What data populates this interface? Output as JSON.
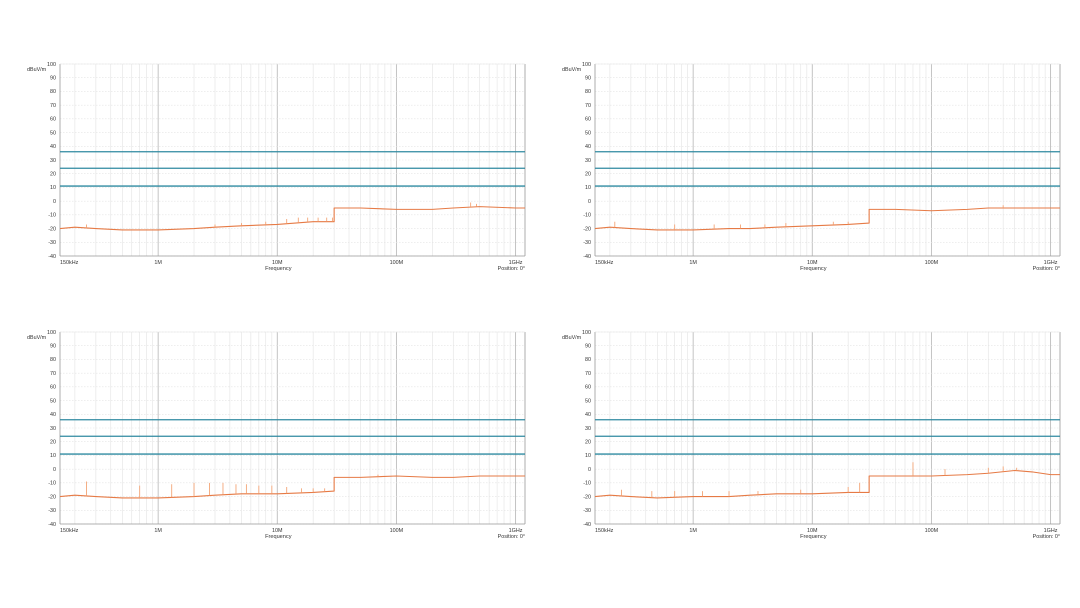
{
  "colors": {
    "grid_major": "#bdbdbd",
    "grid_minor": "#e3e3e3",
    "axis": "#999999",
    "limit_line": "#2f8aa0",
    "trace": "#e67a45",
    "trace_peaks": "#f29a66"
  },
  "chart_data": [
    {
      "type": "line",
      "ylabel": "dBuV/m",
      "xlabel": "Frequency",
      "position_label": "Position: 0°",
      "x_scale": "log",
      "xlim": [
        150000,
        1200000000
      ],
      "ylim": [
        -40,
        100
      ],
      "yticks": [
        100,
        90,
        80,
        70,
        60,
        50,
        40,
        30,
        20,
        10,
        0,
        -10,
        -20,
        -30,
        -40
      ],
      "xticks": [
        {
          "value": 150000,
          "label": "150kHz"
        },
        {
          "value": 1000000,
          "label": "1M"
        },
        {
          "value": 10000000,
          "label": "10M"
        },
        {
          "value": 100000000,
          "label": "100M"
        },
        {
          "value": 1000000000,
          "label": "1GHz"
        }
      ],
      "grid": true,
      "limit_lines": [
        36,
        24,
        11
      ],
      "series": [
        {
          "x": [
            150000,
            200000,
            300000,
            500000,
            1000000,
            2000000,
            3000000,
            5000000,
            10000000,
            20000000,
            30000000,
            30000000,
            50000000,
            100000000,
            200000000,
            300000000,
            500000000,
            1000000000,
            1200000000
          ],
          "y": [
            -20,
            -19,
            -20,
            -21,
            -21,
            -20,
            -19,
            -18,
            -17,
            -15,
            -15,
            -5,
            -5,
            -6,
            -6,
            -5,
            -4,
            -5,
            -5
          ]
        }
      ],
      "peaks": [
        {
          "x": 250000,
          "y": -17
        },
        {
          "x": 3000000,
          "y": -17
        },
        {
          "x": 5000000,
          "y": -16
        },
        {
          "x": 8000000,
          "y": -15
        },
        {
          "x": 12000000,
          "y": -13
        },
        {
          "x": 15000000,
          "y": -12
        },
        {
          "x": 18000000,
          "y": -12
        },
        {
          "x": 22000000,
          "y": -12
        },
        {
          "x": 26000000,
          "y": -12
        },
        {
          "x": 29000000,
          "y": -12
        },
        {
          "x": 420000000,
          "y": -1
        },
        {
          "x": 470000000,
          "y": -2
        }
      ]
    },
    {
      "type": "line",
      "ylabel": "dBuV/m",
      "xlabel": "Frequency",
      "position_label": "Position: 0°",
      "x_scale": "log",
      "xlim": [
        150000,
        1200000000
      ],
      "ylim": [
        -40,
        100
      ],
      "yticks": [
        100,
        90,
        80,
        70,
        60,
        50,
        40,
        30,
        20,
        10,
        0,
        -10,
        -20,
        -30,
        -40
      ],
      "xticks": [
        {
          "value": 150000,
          "label": "150kHz"
        },
        {
          "value": 1000000,
          "label": "1M"
        },
        {
          "value": 10000000,
          "label": "10M"
        },
        {
          "value": 100000000,
          "label": "100M"
        },
        {
          "value": 1000000000,
          "label": "1GHz"
        }
      ],
      "grid": true,
      "limit_lines": [
        36,
        24,
        11
      ],
      "series": [
        {
          "x": [
            150000,
            200000,
            300000,
            500000,
            1000000,
            2000000,
            3000000,
            5000000,
            10000000,
            20000000,
            30000000,
            30000000,
            50000000,
            100000000,
            200000000,
            300000000,
            500000000,
            1000000000,
            1200000000
          ],
          "y": [
            -20,
            -19,
            -20,
            -21,
            -21,
            -20,
            -20,
            -19,
            -18,
            -17,
            -16,
            -6,
            -6,
            -7,
            -6,
            -5,
            -5,
            -5,
            -5
          ]
        }
      ],
      "peaks": [
        {
          "x": 220000,
          "y": -15
        },
        {
          "x": 700000,
          "y": -17
        },
        {
          "x": 1500000,
          "y": -17
        },
        {
          "x": 2500000,
          "y": -17
        },
        {
          "x": 4000000,
          "y": -17
        },
        {
          "x": 6000000,
          "y": -16
        },
        {
          "x": 15000000,
          "y": -15
        },
        {
          "x": 20000000,
          "y": -15
        },
        {
          "x": 400000000,
          "y": -3
        }
      ]
    },
    {
      "type": "line",
      "ylabel": "dBuV/m",
      "xlabel": "Frequency",
      "position_label": "Position: 0°",
      "x_scale": "log",
      "xlim": [
        150000,
        1200000000
      ],
      "ylim": [
        -40,
        100
      ],
      "yticks": [
        100,
        90,
        80,
        70,
        60,
        50,
        40,
        30,
        20,
        10,
        0,
        -10,
        -20,
        -30,
        -40
      ],
      "xticks": [
        {
          "value": 150000,
          "label": "150kHz"
        },
        {
          "value": 1000000,
          "label": "1M"
        },
        {
          "value": 10000000,
          "label": "10M"
        },
        {
          "value": 100000000,
          "label": "100M"
        },
        {
          "value": 1000000000,
          "label": "1GHz"
        }
      ],
      "grid": true,
      "limit_lines": [
        36,
        24,
        11
      ],
      "series": [
        {
          "x": [
            150000,
            200000,
            300000,
            500000,
            1000000,
            2000000,
            3000000,
            5000000,
            10000000,
            20000000,
            30000000,
            30000000,
            50000000,
            100000000,
            200000000,
            300000000,
            500000000,
            1000000000,
            1200000000
          ],
          "y": [
            -20,
            -19,
            -20,
            -21,
            -21,
            -20,
            -19,
            -18,
            -18,
            -17,
            -16,
            -6,
            -6,
            -5,
            -6,
            -6,
            -5,
            -5,
            -5
          ]
        }
      ],
      "peaks": [
        {
          "x": 250000,
          "y": -9
        },
        {
          "x": 700000,
          "y": -12
        },
        {
          "x": 1300000,
          "y": -11
        },
        {
          "x": 2000000,
          "y": -10
        },
        {
          "x": 2700000,
          "y": -10
        },
        {
          "x": 3500000,
          "y": -10
        },
        {
          "x": 4500000,
          "y": -11
        },
        {
          "x": 5500000,
          "y": -11
        },
        {
          "x": 7000000,
          "y": -12
        },
        {
          "x": 9000000,
          "y": -12
        },
        {
          "x": 12000000,
          "y": -13
        },
        {
          "x": 16000000,
          "y": -14
        },
        {
          "x": 20000000,
          "y": -14
        },
        {
          "x": 25000000,
          "y": -14
        },
        {
          "x": 70000000,
          "y": -4
        }
      ]
    },
    {
      "type": "line",
      "ylabel": "dBuV/m",
      "xlabel": "Frequency",
      "position_label": "Position: 0°",
      "x_scale": "log",
      "xlim": [
        150000,
        1200000000
      ],
      "ylim": [
        -40,
        100
      ],
      "yticks": [
        100,
        90,
        80,
        70,
        60,
        50,
        40,
        30,
        20,
        10,
        0,
        -10,
        -20,
        -30,
        -40
      ],
      "xticks": [
        {
          "value": 150000,
          "label": "150kHz"
        },
        {
          "value": 1000000,
          "label": "1M"
        },
        {
          "value": 10000000,
          "label": "10M"
        },
        {
          "value": 100000000,
          "label": "100M"
        },
        {
          "value": 1000000000,
          "label": "1GHz"
        }
      ],
      "grid": true,
      "limit_lines": [
        36,
        24,
        11
      ],
      "series": [
        {
          "x": [
            150000,
            200000,
            300000,
            500000,
            1000000,
            2000000,
            3000000,
            5000000,
            10000000,
            20000000,
            30000000,
            30000000,
            50000000,
            100000000,
            200000000,
            300000000,
            500000000,
            700000000,
            1000000000,
            1200000000
          ],
          "y": [
            -20,
            -19,
            -20,
            -21,
            -20,
            -20,
            -19,
            -18,
            -18,
            -17,
            -17,
            -5,
            -5,
            -5,
            -4,
            -3,
            -1,
            -2,
            -4,
            -4
          ]
        }
      ],
      "peaks": [
        {
          "x": 250000,
          "y": -15
        },
        {
          "x": 450000,
          "y": -16
        },
        {
          "x": 700000,
          "y": -16
        },
        {
          "x": 1200000,
          "y": -16
        },
        {
          "x": 2000000,
          "y": -16
        },
        {
          "x": 3500000,
          "y": -16
        },
        {
          "x": 8000000,
          "y": -15
        },
        {
          "x": 20000000,
          "y": -13
        },
        {
          "x": 25000000,
          "y": -10
        },
        {
          "x": 70000000,
          "y": 5
        },
        {
          "x": 130000000,
          "y": 0
        },
        {
          "x": 300000000,
          "y": 1
        },
        {
          "x": 400000000,
          "y": 2
        },
        {
          "x": 520000000,
          "y": 1
        }
      ]
    }
  ]
}
